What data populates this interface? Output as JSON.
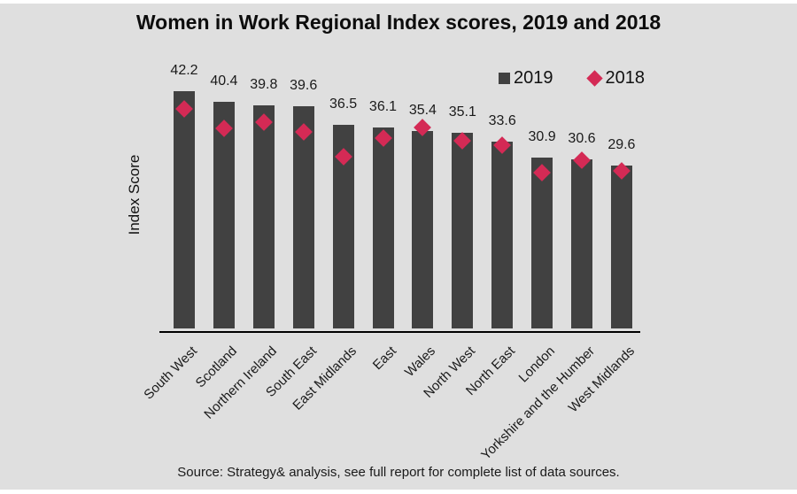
{
  "page": {
    "background_color": "#dfdfdf",
    "bar_color": "#414141",
    "marker_color": "#d42a55"
  },
  "title": "Women in Work Regional Index scores, 2019 and 2018",
  "ylabel": "Index Score",
  "source_note": "Source: Strategy& analysis, see full report for complete list of data sources.",
  "chart_data": {
    "type": "bar",
    "title": "Women in Work Regional Index scores, 2019 and 2018",
    "xlabel": "",
    "ylabel": "Index Score",
    "categories": [
      "South West",
      "Scotland",
      "Northern Ireland",
      "South East",
      "East Midlands",
      "East",
      "Wales",
      "North West",
      "North East",
      "London",
      "Yorkshire and the Humber",
      "West Midlands"
    ],
    "series": [
      {
        "name": "2019",
        "type": "bar",
        "color": "#414141",
        "marker": "square",
        "values": [
          42.2,
          40.4,
          39.8,
          39.6,
          36.5,
          36.1,
          35.4,
          35.1,
          33.6,
          30.9,
          30.6,
          29.6
        ],
        "data_labels_shown": true
      },
      {
        "name": "2018",
        "type": "scatter",
        "color": "#d42a55",
        "marker": "diamond",
        "values": [
          39.2,
          35.9,
          36.9,
          35.2,
          31.0,
          34.2,
          36.0,
          33.7,
          33.0,
          28.4,
          30.4,
          28.7
        ],
        "values_estimated_from_marker_positions": true,
        "data_labels_shown": false
      }
    ],
    "y_axis_ticks_shown": false,
    "x_tick_rotation_deg": 45,
    "grid": false,
    "legend_position": "top-right"
  }
}
